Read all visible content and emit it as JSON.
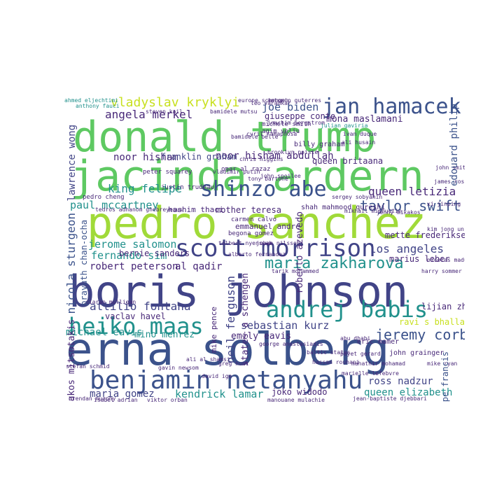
{
  "palette": {
    "light_green": "#8fd744",
    "green": "#5ec962",
    "lime": "#a0da39",
    "yellow_green": "#c8e020",
    "teal": "#21918c",
    "teal_dark": "#2a788e",
    "blue": "#3b528b",
    "indigo": "#414487",
    "purple": "#482878",
    "dark_purple": "#440154"
  },
  "words": {
    "donald_trump": "donald trump",
    "jacinda_ardern": "jacinda ardern",
    "pedro_sanchez": "pedro sanchez",
    "boris_johnson": "boris johnson",
    "erna_solberg": "erna solberg",
    "benjamin_netanyahu": "benjamin netanyahu",
    "scott_morrison": "scott morrison",
    "heiko_maas": "heiko maas",
    "andrej_babis": "andrej babis",
    "jan_hamacek": "jan hamacek",
    "shinzo_abe": "shinzo abe",
    "maria_zakharova": "maria zakharova",
    "vladyslav_kryklyi": "vladyslav kryklyi",
    "angela_merkel": "angela merkel",
    "king_felipe": "king felipe",
    "paul_mccartney": "paul mccartney",
    "taylor_swift": "taylor swift",
    "queen_letizia": "queen letizia",
    "joe_biden": "joe biden",
    "mona_maslamani": "mona maslamani",
    "noor_hisham": "noor hisham",
    "noor_hisham_abdullah": "noor hisham abdullah",
    "franklin_graham": "franklin graham",
    "queen_britaana": "queen britaana",
    "giuseppe_conte": "giuseppe conte",
    "jerome_salomon": "jerome salomon",
    "fernando_sim": "fernando sim",
    "bernie_sanders": "bernie sanders",
    "robert_peterson": "robert peterson",
    "al_qadir": "al qadir",
    "attilio_fontana": "attilio fontana",
    "vaclav_havel": "vaclav havel",
    "los_angeles": "los angeles",
    "mette_frederiksen": "mette frederiksen",
    "marius_leber": "marius leber",
    "jeremy_corbyn": "jeremy corbyn",
    "sebastian_kurz": "sebastian kurz",
    "emily_eavis": "emily eavis",
    "michael_eavis": "michael eavis",
    "mino_mehrez": "mino mehrez",
    "maria_gomez": "maria gomez",
    "kendrick_lamar": "kendrick lamar",
    "joko_widodo": "joko widodo",
    "queen_elizabeth": "queen elizabeth",
    "ross_nadzur": "ross nadzur",
    "lijian_zhao": "lijian zhao",
    "nicola_sturgeon": "nicola sturgeon",
    "kyriakos_mitsotakis": "kyriakos mitsotakis",
    "lawrence_wong": "lawrence wong",
    "edouard_philip": "edouard philip",
    "neil_ferguson": "neil ferguson",
    "states_a_schengen": "states a schengen",
    "roberto_azevedo": "roberto azevedo",
    "mike_pence": "mike pence",
    "emmanuel_andre": "emmanuel andre",
    "mother_teresa": "mother teresa",
    "hashim_thaci": "hashim thaci",
    "billy_graham": "billy graham",
    "ravi_s_bhalla": "ravi s bhalla",
    "pope_francis": "pope francis",
    "shah_mahmood_qureshi": "shah mahmood qureshi",
    "justin_trudeau": "justin trudeau",
    "pedro_cheng": "pedro cheng",
    "peter_squarey": "peter squarey",
    "agim_veliu": "agim veliu",
    "michele_smith": "michele smith",
    "omar_al_razaz": "omar al razaz",
    "carmen_calvo": "carmen calvo",
    "begona_gomez": "begona gomez",
    "eric_mamer": "eric mamer",
    "john_grainger": "john grainger",
    "joachim_bergstrom": "joachim bergstrom",
    "antonio_guterres": "antonio guterres",
    "cyril_ramaphosa": "cyril ramaphosa",
    "bamidele_mutsu": "bamidele mutsu",
    "steven_kail": "steven kail",
    "anthony_fauci": "anthony fauci",
    "ahmed_eljechtimi": "ahmed eljechtimi",
    "leo_varadkar": "leo varadkar",
    "europe_schengen": "europe schengen",
    "vladimir_putin": "vladimir putin",
    "brooklyn_poisie": "brooklyn poisie",
    "john_spoilee": "john spoilee",
    "tony_bartone": "tony bartone",
    "chris_higgins": "chris higgins",
    "tedros_adhanom": "tedros adhanom ghebreyesus",
    "ciaran_mulligan": "ciaran mulligan",
    "stefan_schmid": "stefan schmid",
    "prayuth_chan_ocha": "prayuth chan-ocha",
    "brendan_murphy": "brendan murphy",
    "isabel_adrian": "isabel adrian",
    "viktor_orban": "viktor orban",
    "jean_baptiste": "jean-baptiste djebbari",
    "mike_ryan": "mike ryan",
    "nicolas_maduro": "nicolas maduro",
    "john_smith": "john smith",
    "harry_sommer": "harry sommer",
    "james_ross": "james ross",
    "julian_gaviria": "julian gaviria",
    "ivan_duque": "ivan duque",
    "ali_husain": "ali husain",
    "kim_jong_un": "kim jong un",
    "xi_jinping": "xi jinping",
    "george_anastasiadis": "george anastasiadis",
    "baltic_states": "baltic states",
    "tarik_mohammed": "tarik mohammed",
    "johan_nilsson": "johan nilsson",
    "bamidele_belle": "bamidele belle",
    "mikhail_mishustin": "mikhail mishustin",
    "jenny_mikakos": "jenny mikakos",
    "sergey_sobyanin": "sergey sobyanin",
    "alberto_fernandez": "alberto fernandez",
    "tolbert_nyenswah": "tolbert nyenswah",
    "manouane_mulachie": "manouane mulachie",
    "payet_gerard": "payet gerard",
    "marielle_lefebvre": "marielle lefebvre",
    "hassan_rouhani": "hassan rouhani",
    "abu_dhabi": "abu dhabi",
    "mahathir_mohamad": "mahathir mohamad",
    "tedros_short": "tedros adhanom",
    "greg_hunt": "greg hunt",
    "gavin_newsom": "gavin newsom",
    "david_ige": "david ige",
    "ali_al_shamsi": "ali al shamsi"
  }
}
